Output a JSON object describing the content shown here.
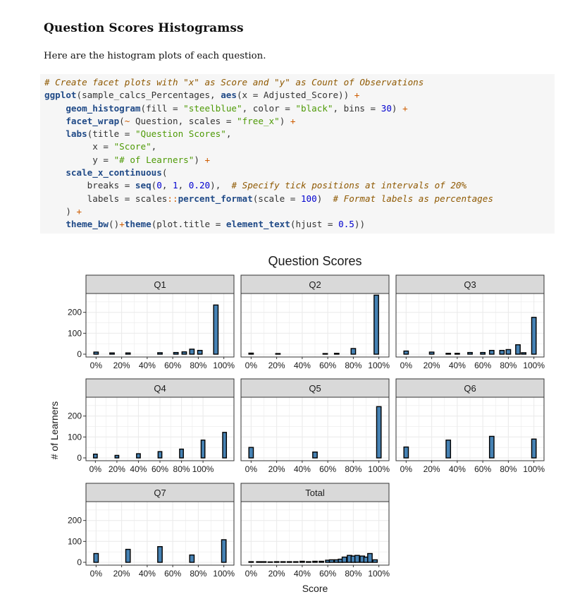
{
  "document": {
    "heading": "Question Scores Histogramss",
    "intro": "Here are the histogram plots of each question."
  },
  "code_block": {
    "lines": [
      [
        [
          "cm",
          "# Create facet plots with \"x\" as Score and \"y\" as Count of Observations"
        ]
      ],
      [
        [
          "fn",
          "ggplot"
        ],
        [
          "pl",
          "(sample_calcs_Percentages, "
        ],
        [
          "fn",
          "aes"
        ],
        [
          "pl",
          "(x = Adjusted_Score)) "
        ],
        [
          "op",
          "+"
        ]
      ],
      [
        [
          "pl",
          "    "
        ],
        [
          "fn",
          "geom_histogram"
        ],
        [
          "pl",
          "(fill = "
        ],
        [
          "st",
          "\"steelblue\""
        ],
        [
          "pl",
          ", color = "
        ],
        [
          "st",
          "\"black\""
        ],
        [
          "pl",
          ", bins = "
        ],
        [
          "nu",
          "30"
        ],
        [
          "pl",
          ") "
        ],
        [
          "op",
          "+"
        ]
      ],
      [
        [
          "pl",
          "    "
        ],
        [
          "fn",
          "facet_wrap"
        ],
        [
          "pl",
          "("
        ],
        [
          "op",
          "~"
        ],
        [
          "pl",
          " Question, scales = "
        ],
        [
          "st",
          "\"free_x\""
        ],
        [
          "pl",
          ") "
        ],
        [
          "op",
          "+"
        ]
      ],
      [
        [
          "pl",
          "    "
        ],
        [
          "fn",
          "labs"
        ],
        [
          "pl",
          "(title = "
        ],
        [
          "st",
          "\"Question Scores\""
        ],
        [
          "pl",
          ","
        ]
      ],
      [
        [
          "pl",
          "         x = "
        ],
        [
          "st",
          "\"Score\""
        ],
        [
          "pl",
          ","
        ]
      ],
      [
        [
          "pl",
          "         y = "
        ],
        [
          "st",
          "\"# of Learners\""
        ],
        [
          "pl",
          ") "
        ],
        [
          "op",
          "+"
        ]
      ],
      [
        [
          "pl",
          "    "
        ],
        [
          "fn",
          "scale_x_continuous"
        ],
        [
          "pl",
          "("
        ]
      ],
      [
        [
          "pl",
          "        breaks = "
        ],
        [
          "fn",
          "seq"
        ],
        [
          "pl",
          "("
        ],
        [
          "nu",
          "0"
        ],
        [
          "pl",
          ", "
        ],
        [
          "nu",
          "1"
        ],
        [
          "pl",
          ", "
        ],
        [
          "nu",
          "0.20"
        ],
        [
          "pl",
          "),  "
        ],
        [
          "cm",
          "# Specify tick positions at intervals of 20%"
        ]
      ],
      [
        [
          "pl",
          "        labels = scales"
        ],
        [
          "op",
          "::"
        ],
        [
          "fn",
          "percent_format"
        ],
        [
          "pl",
          "(scale = "
        ],
        [
          "nu",
          "100"
        ],
        [
          "pl",
          ")  "
        ],
        [
          "cm",
          "# Format labels as percentages"
        ]
      ],
      [
        [
          "pl",
          "    ) "
        ],
        [
          "op",
          "+"
        ]
      ],
      [
        [
          "pl",
          "    "
        ],
        [
          "fn",
          "theme_bw"
        ],
        [
          "pl",
          "()"
        ],
        [
          "op",
          "+"
        ],
        [
          "fn",
          "theme"
        ],
        [
          "pl",
          "(plot.title = "
        ],
        [
          "fn",
          "element_text"
        ],
        [
          "pl",
          "(hjust = "
        ],
        [
          "nu",
          "0.5"
        ],
        [
          "pl",
          "))"
        ]
      ]
    ]
  },
  "chart_data": {
    "type": "bar",
    "title": "Question Scores",
    "xlabel": "Score",
    "ylabel": "# of Learners",
    "ylim": [
      0,
      290
    ],
    "y_ticks": [
      0,
      100,
      200
    ],
    "x_ticks": [
      0,
      0.2,
      0.4,
      0.6,
      0.8,
      1.0
    ],
    "x_tick_labels": [
      "0%",
      "20%",
      "40%",
      "60%",
      "80%",
      "100%"
    ],
    "grid": true,
    "colors": {
      "fill": "#4682b4",
      "stroke": "#000000",
      "strip": "#d9d9d9",
      "grid": "#ebebeb"
    },
    "facets": [
      {
        "name": "Q1",
        "bars": [
          [
            0.0,
            10
          ],
          [
            0.125,
            6
          ],
          [
            0.25,
            6
          ],
          [
            0.5,
            7
          ],
          [
            0.625,
            8
          ],
          [
            0.69,
            11
          ],
          [
            0.75,
            24
          ],
          [
            0.8125,
            18
          ],
          [
            0.9375,
            235
          ]
        ]
      },
      {
        "name": "Q2",
        "bars": [
          [
            0.0,
            5
          ],
          [
            0.21,
            3
          ],
          [
            0.58,
            3
          ],
          [
            0.67,
            4
          ],
          [
            0.8,
            27
          ],
          [
            0.98,
            282
          ]
        ]
      },
      {
        "name": "Q3",
        "bars": [
          [
            0.0,
            15
          ],
          [
            0.2,
            10
          ],
          [
            0.33,
            4
          ],
          [
            0.4,
            4
          ],
          [
            0.5,
            8
          ],
          [
            0.6,
            8
          ],
          [
            0.67,
            18
          ],
          [
            0.75,
            18
          ],
          [
            0.8,
            22
          ],
          [
            0.875,
            45
          ],
          [
            0.92,
            7
          ],
          [
            1.0,
            176
          ]
        ]
      },
      {
        "name": "Q4",
        "bars": [
          [
            0.0,
            18
          ],
          [
            0.2,
            12
          ],
          [
            0.4,
            20
          ],
          [
            0.6,
            30
          ],
          [
            0.8,
            42
          ],
          [
            1.0,
            85
          ],
          [
            1.2,
            122
          ]
        ]
      },
      {
        "name": "Q5",
        "bars": [
          [
            0.0,
            50
          ],
          [
            0.5,
            28
          ],
          [
            1.0,
            245
          ]
        ]
      },
      {
        "name": "Q6",
        "bars": [
          [
            0.0,
            52
          ],
          [
            0.33,
            85
          ],
          [
            0.67,
            103
          ],
          [
            1.0,
            90
          ]
        ]
      },
      {
        "name": "Q7",
        "bars": [
          [
            0.0,
            42
          ],
          [
            0.25,
            62
          ],
          [
            0.5,
            75
          ],
          [
            0.75,
            35
          ],
          [
            1.0,
            108
          ]
        ]
      },
      {
        "name": "Total",
        "bars": [
          [
            0.0,
            3
          ],
          [
            0.06,
            3
          ],
          [
            0.1,
            3
          ],
          [
            0.15,
            2
          ],
          [
            0.2,
            3
          ],
          [
            0.25,
            3
          ],
          [
            0.3,
            3
          ],
          [
            0.35,
            3
          ],
          [
            0.4,
            5
          ],
          [
            0.45,
            3
          ],
          [
            0.5,
            5
          ],
          [
            0.55,
            5
          ],
          [
            0.6,
            10
          ],
          [
            0.63,
            12
          ],
          [
            0.67,
            12
          ],
          [
            0.7,
            15
          ],
          [
            0.73,
            25
          ],
          [
            0.77,
            33
          ],
          [
            0.8,
            30
          ],
          [
            0.83,
            33
          ],
          [
            0.87,
            30
          ],
          [
            0.9,
            25
          ],
          [
            0.93,
            42
          ],
          [
            0.97,
            12
          ]
        ]
      }
    ]
  }
}
